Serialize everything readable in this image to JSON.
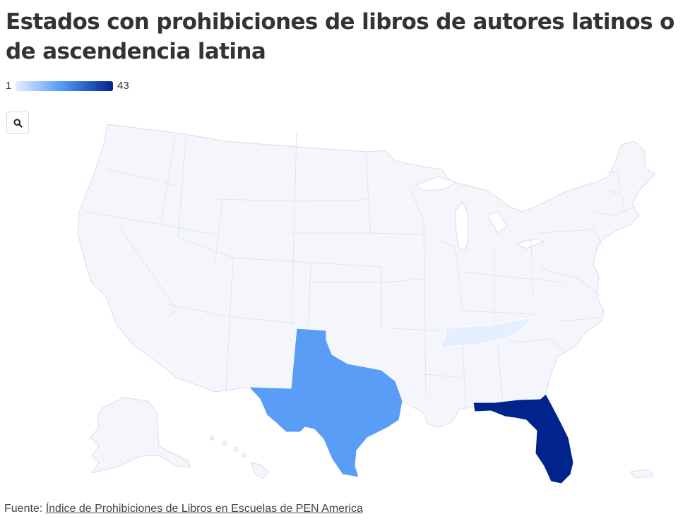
{
  "chart_data": {
    "type": "choropleth",
    "title": "Estados con prohibiciones de libros de autores latinos o de ascendencia latina",
    "legend": {
      "min_label": "1",
      "max_label": "43",
      "placement": "top-left"
    },
    "color_scale": [
      "#e6efff",
      "#4a94f5",
      "#00238c"
    ],
    "default_fill": "#f4f6fc",
    "stroke": "#d8dde6",
    "states": [
      {
        "name": "Texas",
        "value": 20
      },
      {
        "name": "Florida",
        "value": 43
      },
      {
        "name": "Tennessee",
        "value": 1
      }
    ]
  },
  "source": {
    "prefix": "Fuente: ",
    "link_text": "Índice de Prohibiciones de Libros en Escuelas de PEN America"
  },
  "controls": {
    "zoom_icon": "search-icon"
  }
}
